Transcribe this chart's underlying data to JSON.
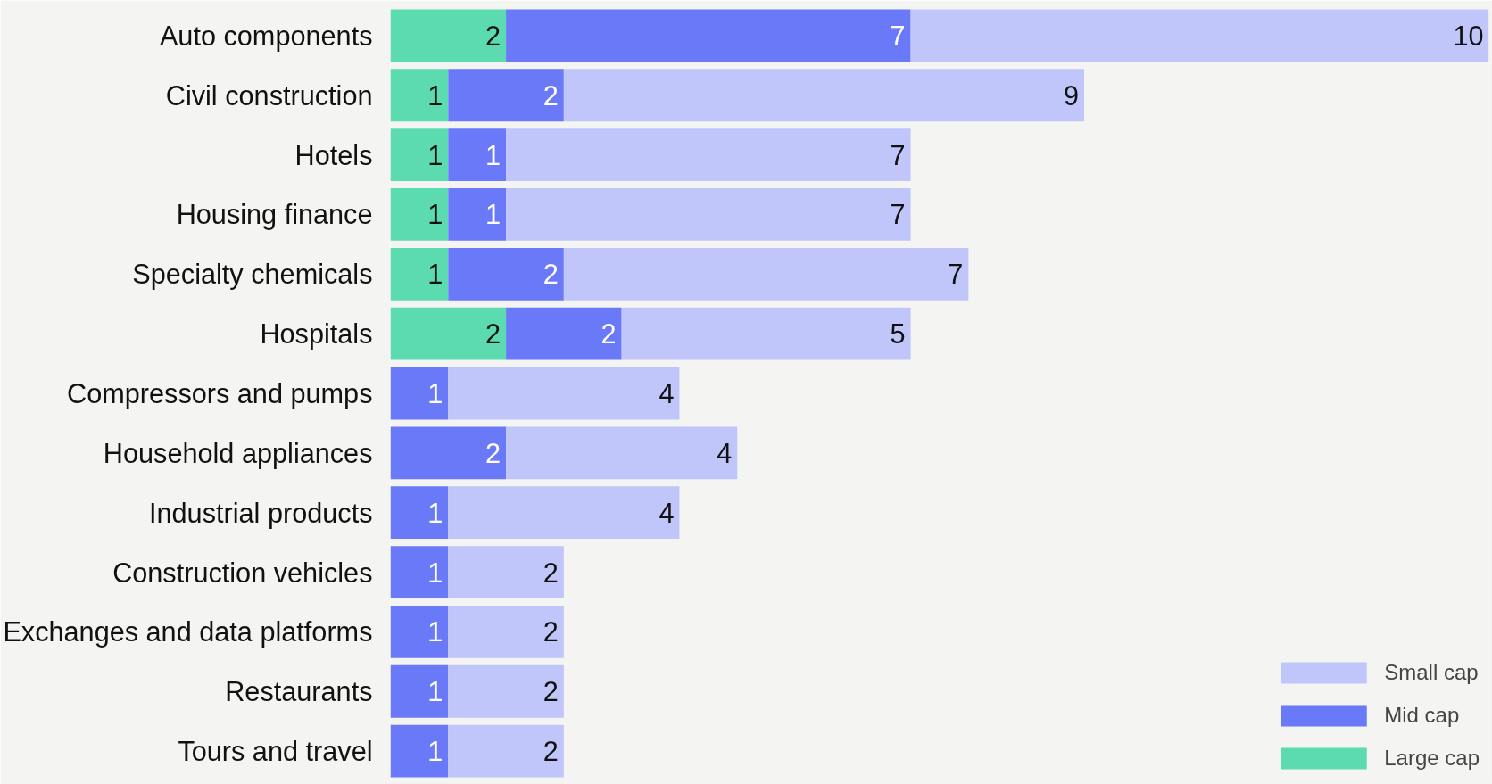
{
  "chart_data": {
    "type": "bar",
    "orientation": "horizontal",
    "stacked": true,
    "data_labels": true,
    "grid": false,
    "legend": "bottom right",
    "categories": [
      "Auto components",
      "Civil construction",
      "Hotels",
      "Housing finance",
      "Specialty chemicals",
      "Hospitals",
      "Compressors and pumps",
      "Household appliances",
      "Industrial products",
      "Construction vehicles",
      "Exchanges and data platforms",
      "Restaurants",
      "Tours and travel"
    ],
    "series": [
      {
        "name": "Large cap",
        "color": "#5cdbb0",
        "values": [
          2,
          1,
          1,
          1,
          1,
          2,
          null,
          null,
          null,
          null,
          null,
          null,
          null
        ]
      },
      {
        "name": "Mid cap",
        "color": "#6979f8",
        "values": [
          7,
          2,
          1,
          1,
          2,
          2,
          1,
          2,
          1,
          1,
          1,
          1,
          1
        ]
      },
      {
        "name": "Small cap",
        "color": "#c0c6fa",
        "values": [
          10,
          9,
          7,
          7,
          7,
          5,
          4,
          4,
          4,
          2,
          2,
          2,
          2
        ]
      }
    ]
  }
}
